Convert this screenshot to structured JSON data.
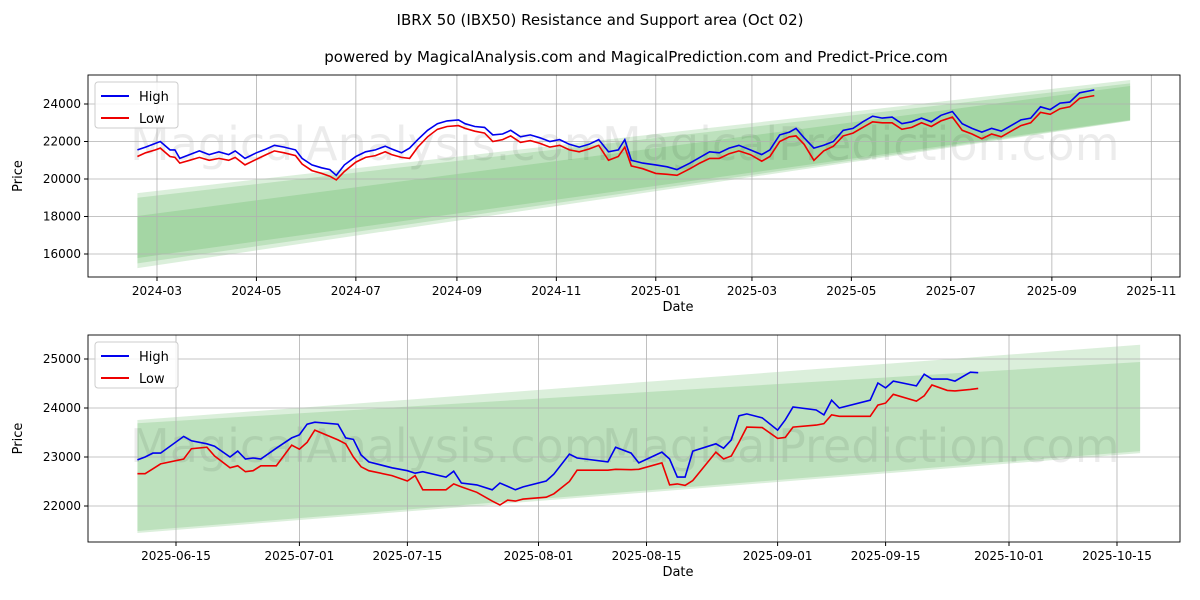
{
  "title": "IBRX 50 (IBX50) Resistance and Support area (Oct 02)",
  "subtitle": "powered by MagicalAnalysis.com and MagicalPrediction.com and Predict-Price.com",
  "watermark": [
    "MagicalAnalysis.com",
    "MagicalPrediction.com"
  ],
  "colors": {
    "high": "#0000ee",
    "low": "#ee0000",
    "band": "#2ca02c"
  },
  "chart_data": [
    {
      "type": "line",
      "xlabel": "Date",
      "ylabel": "Price",
      "legend": {
        "position": "top-left",
        "entries": [
          "High",
          "Low"
        ]
      },
      "grid": true,
      "ylim": [
        14700,
        25900
      ],
      "yticks": [
        16000,
        18000,
        20000,
        22000,
        24000
      ],
      "xticks": [
        {
          "date": "2024-03-01",
          "label": "2024-03"
        },
        {
          "date": "2024-05-01",
          "label": "2024-05"
        },
        {
          "date": "2024-07-01",
          "label": "2024-07"
        },
        {
          "date": "2024-09-01",
          "label": "2024-09"
        },
        {
          "date": "2024-11-01",
          "label": "2024-11"
        },
        {
          "date": "2025-01-01",
          "label": "2025-01"
        },
        {
          "date": "2025-03-01",
          "label": "2025-03"
        },
        {
          "date": "2025-05-01",
          "label": "2025-05"
        },
        {
          "date": "2025-07-01",
          "label": "2025-07"
        },
        {
          "date": "2025-09-01",
          "label": "2025-09"
        },
        {
          "date": "2025-11-01",
          "label": "2025-11"
        }
      ],
      "bands": [
        {
          "start": "2024-02-18",
          "end": "2025-10-19",
          "start_range": [
            15250,
            19250
          ],
          "end_range": [
            23100,
            25280
          ]
        },
        {
          "start": "2024-02-18",
          "end": "2025-10-19",
          "start_range": [
            15500,
            19000
          ],
          "end_range": [
            23120,
            25100
          ]
        },
        {
          "start": "2024-02-18",
          "end": "2025-10-19",
          "start_range": [
            15790,
            18030
          ],
          "end_range": [
            23150,
            24960
          ]
        }
      ],
      "dates": [
        "2024-02-18",
        "2024-02-23",
        "2024-02-29",
        "2024-03-03",
        "2024-03-09",
        "2024-03-12",
        "2024-03-15",
        "2024-03-21",
        "2024-03-27",
        "2024-04-02",
        "2024-04-08",
        "2024-04-14",
        "2024-04-18",
        "2024-04-24",
        "2024-05-01",
        "2024-05-07",
        "2024-05-12",
        "2024-05-18",
        "2024-05-25",
        "2024-05-29",
        "2024-06-04",
        "2024-06-10",
        "2024-06-15",
        "2024-06-19",
        "2024-06-24",
        "2024-07-01",
        "2024-07-07",
        "2024-07-13",
        "2024-07-19",
        "2024-07-23",
        "2024-07-29",
        "2024-08-03",
        "2024-08-08",
        "2024-08-14",
        "2024-08-20",
        "2024-08-26",
        "2024-09-02",
        "2024-09-06",
        "2024-09-12",
        "2024-09-18",
        "2024-09-23",
        "2024-09-29",
        "2024-10-04",
        "2024-10-10",
        "2024-10-16",
        "2024-10-22",
        "2024-10-28",
        "2024-11-03",
        "2024-11-09",
        "2024-11-15",
        "2024-11-21",
        "2024-11-27",
        "2024-12-03",
        "2024-12-09",
        "2024-12-13",
        "2024-12-17",
        "2024-12-24",
        "2025-01-01",
        "2025-01-08",
        "2025-01-14",
        "2025-01-22",
        "2025-01-28",
        "2025-02-03",
        "2025-02-09",
        "2025-02-15",
        "2025-02-21",
        "2025-02-28",
        "2025-03-07",
        "2025-03-12",
        "2025-03-18",
        "2025-03-24",
        "2025-03-28",
        "2025-04-02",
        "2025-04-08",
        "2025-04-14",
        "2025-04-20",
        "2025-04-26",
        "2025-05-02",
        "2025-05-08",
        "2025-05-14",
        "2025-05-20",
        "2025-05-26",
        "2025-06-01",
        "2025-06-07",
        "2025-06-13",
        "2025-06-19",
        "2025-06-25",
        "2025-07-02",
        "2025-07-08",
        "2025-07-14",
        "2025-07-20",
        "2025-07-26",
        "2025-08-01",
        "2025-08-07",
        "2025-08-13",
        "2025-08-19",
        "2025-08-25",
        "2025-08-31",
        "2025-09-06",
        "2025-09-12",
        "2025-09-18",
        "2025-09-24",
        "2025-09-27"
      ],
      "series": [
        {
          "name": "High",
          "values": [
            21550,
            21700,
            21900,
            22000,
            21550,
            21550,
            21100,
            21300,
            21500,
            21300,
            21450,
            21300,
            21500,
            21100,
            21400,
            21600,
            21800,
            21700,
            21550,
            21100,
            20750,
            20600,
            20500,
            20200,
            20750,
            21200,
            21450,
            21550,
            21750,
            21600,
            21400,
            21650,
            22100,
            22600,
            22950,
            23100,
            23150,
            22950,
            22800,
            22750,
            22350,
            22400,
            22600,
            22250,
            22350,
            22200,
            22000,
            22100,
            21850,
            21700,
            21850,
            22100,
            21450,
            21550,
            22100,
            21000,
            20850,
            20750,
            20650,
            20500,
            20850,
            21150,
            21450,
            21400,
            21650,
            21800,
            21550,
            21300,
            21550,
            22350,
            22500,
            22700,
            22200,
            21650,
            21800,
            22000,
            22600,
            22700,
            23050,
            23350,
            23250,
            23300,
            22950,
            23050,
            23250,
            23050,
            23400,
            23600,
            22950,
            22700,
            22500,
            22700,
            22550,
            22850,
            23150,
            23250,
            23850,
            23700,
            24050,
            24100,
            24600,
            24700,
            24750
          ]
        },
        {
          "name": "Low",
          "values": [
            21200,
            21400,
            21550,
            21650,
            21200,
            21150,
            20850,
            21000,
            21150,
            21000,
            21100,
            21000,
            21150,
            20750,
            21050,
            21300,
            21500,
            21400,
            21250,
            20800,
            20450,
            20300,
            20150,
            19950,
            20400,
            20900,
            21150,
            21250,
            21450,
            21300,
            21150,
            21100,
            21700,
            22250,
            22650,
            22800,
            22850,
            22700,
            22550,
            22450,
            22000,
            22100,
            22300,
            21950,
            22050,
            21900,
            21700,
            21800,
            21550,
            21450,
            21600,
            21800,
            21000,
            21200,
            21700,
            20700,
            20550,
            20300,
            20250,
            20200,
            20550,
            20850,
            21100,
            21100,
            21350,
            21500,
            21300,
            20950,
            21200,
            22000,
            22250,
            22300,
            21850,
            21000,
            21500,
            21750,
            22300,
            22450,
            22750,
            23050,
            23000,
            23000,
            22650,
            22750,
            23000,
            22800,
            23100,
            23300,
            22600,
            22400,
            22150,
            22400,
            22250,
            22550,
            22850,
            23000,
            23550,
            23450,
            23750,
            23850,
            24300,
            24400,
            24450
          ]
        }
      ]
    },
    {
      "type": "line",
      "xlabel": "Date",
      "ylabel": "Price",
      "legend": {
        "position": "top-left",
        "entries": [
          "High",
          "Low"
        ]
      },
      "grid": true,
      "ylim": [
        21300,
        25480
      ],
      "yticks": [
        22000,
        23000,
        24000,
        25000
      ],
      "xticks": [
        {
          "date": "2025-06-15",
          "label": "2025-06-15"
        },
        {
          "date": "2025-07-01",
          "label": "2025-07-01"
        },
        {
          "date": "2025-07-15",
          "label": "2025-07-15"
        },
        {
          "date": "2025-08-01",
          "label": "2025-08-01"
        },
        {
          "date": "2025-08-15",
          "label": "2025-08-15"
        },
        {
          "date": "2025-09-01",
          "label": "2025-09-01"
        },
        {
          "date": "2025-09-15",
          "label": "2025-09-15"
        },
        {
          "date": "2025-10-01",
          "label": "2025-10-01"
        },
        {
          "date": "2025-10-15",
          "label": "2025-10-15"
        }
      ],
      "bands": [
        {
          "start": "2025-06-10",
          "end": "2025-10-18",
          "start_range": [
            21450,
            23755
          ],
          "end_range": [
            23080,
            25290
          ]
        },
        {
          "start": "2025-06-10",
          "end": "2025-10-18",
          "start_range": [
            21490,
            23690
          ],
          "end_range": [
            23120,
            24940
          ]
        }
      ],
      "dates": [
        "2025-06-10",
        "2025-06-11",
        "2025-06-12",
        "2025-06-13",
        "2025-06-16",
        "2025-06-17",
        "2025-06-19",
        "2025-06-20",
        "2025-06-22",
        "2025-06-23",
        "2025-06-24",
        "2025-06-25",
        "2025-06-26",
        "2025-06-28",
        "2025-06-30",
        "2025-07-01",
        "2025-07-02",
        "2025-07-03",
        "2025-07-06",
        "2025-07-07",
        "2025-07-08",
        "2025-07-09",
        "2025-07-10",
        "2025-07-13",
        "2025-07-15",
        "2025-07-16",
        "2025-07-17",
        "2025-07-20",
        "2025-07-21",
        "2025-07-22",
        "2025-07-24",
        "2025-07-26",
        "2025-07-27",
        "2025-07-28",
        "2025-07-29",
        "2025-07-30",
        "2025-08-02",
        "2025-08-03",
        "2025-08-05",
        "2025-08-06",
        "2025-08-10",
        "2025-08-11",
        "2025-08-13",
        "2025-08-14",
        "2025-08-17",
        "2025-08-18",
        "2025-08-19",
        "2025-08-20",
        "2025-08-21",
        "2025-08-24",
        "2025-08-25",
        "2025-08-26",
        "2025-08-27",
        "2025-08-28",
        "2025-08-30",
        "2025-09-01",
        "2025-09-02",
        "2025-09-03",
        "2025-09-06",
        "2025-09-07",
        "2025-09-08",
        "2025-09-09",
        "2025-09-13",
        "2025-09-14",
        "2025-09-15",
        "2025-09-16",
        "2025-09-19",
        "2025-09-20",
        "2025-09-21",
        "2025-09-23",
        "2025-09-24",
        "2025-09-26",
        "2025-09-27"
      ],
      "series": [
        {
          "name": "High",
          "values": [
            22940,
            23000,
            23080,
            23080,
            23420,
            23330,
            23270,
            23220,
            23000,
            23120,
            22960,
            22980,
            22960,
            23180,
            23390,
            23450,
            23670,
            23710,
            23670,
            23390,
            23360,
            23040,
            22900,
            22780,
            22720,
            22670,
            22700,
            22590,
            22710,
            22470,
            22430,
            22330,
            22470,
            22400,
            22330,
            22390,
            22510,
            22650,
            23060,
            22980,
            22900,
            23200,
            23080,
            22880,
            23100,
            22960,
            22590,
            22590,
            23120,
            23270,
            23180,
            23350,
            23840,
            23880,
            23800,
            23550,
            23760,
            24020,
            23960,
            23860,
            24160,
            24000,
            24160,
            24510,
            24410,
            24550,
            24450,
            24690,
            24590,
            24590,
            24550,
            24730,
            24720
          ]
        },
        {
          "name": "Low",
          "values": [
            22660,
            22660,
            22760,
            22860,
            22960,
            23170,
            23200,
            23020,
            22780,
            22820,
            22700,
            22720,
            22820,
            22820,
            23240,
            23160,
            23300,
            23550,
            23350,
            23270,
            23000,
            22800,
            22720,
            22620,
            22510,
            22620,
            22330,
            22330,
            22450,
            22390,
            22280,
            22100,
            22020,
            22120,
            22100,
            22140,
            22180,
            22250,
            22500,
            22730,
            22730,
            22750,
            22740,
            22750,
            22880,
            22430,
            22450,
            22420,
            22520,
            23100,
            22960,
            23020,
            23300,
            23610,
            23600,
            23380,
            23400,
            23610,
            23650,
            23680,
            23860,
            23830,
            23830,
            24060,
            24100,
            24280,
            24140,
            24250,
            24470,
            24360,
            24350,
            24380,
            24400
          ]
        }
      ]
    }
  ]
}
